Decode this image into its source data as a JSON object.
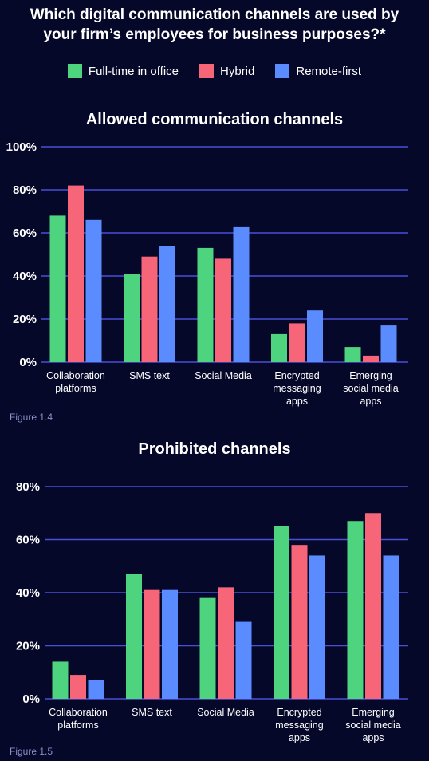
{
  "header": {
    "title": "Which digital communication channels are used by\nyour firm’s employees for business purposes?*"
  },
  "legend": [
    {
      "label": "Full-time in office",
      "color": "#4ed47f"
    },
    {
      "label": "Hybrid",
      "color": "#f66578"
    },
    {
      "label": "Remote-first",
      "color": "#5a8cff"
    }
  ],
  "colors": {
    "background": "#06082a",
    "gridline": "#4a4fd6",
    "caption": "#8a90c8"
  },
  "captions": {
    "chart1": "Figure 1.4",
    "chart2": "Figure 1.5"
  },
  "chart_data": [
    {
      "type": "bar",
      "title": "Allowed communication channels",
      "categories": [
        [
          "Collaboration",
          "platforms"
        ],
        [
          "SMS text"
        ],
        [
          "Social Media"
        ],
        [
          "Encrypted",
          "messaging",
          "apps"
        ],
        [
          "Emerging",
          "social media",
          "apps"
        ]
      ],
      "series": [
        {
          "name": "Full-time in office",
          "values": [
            68,
            41,
            53,
            13,
            7
          ]
        },
        {
          "name": "Hybrid",
          "values": [
            82,
            49,
            48,
            18,
            3
          ]
        },
        {
          "name": "Remote-first",
          "values": [
            66,
            54,
            63,
            24,
            17
          ]
        }
      ],
      "ylim": [
        0,
        100
      ],
      "yticks": [
        "0%",
        "20%",
        "40%",
        "60%",
        "80%",
        "100%"
      ],
      "grid": true
    },
    {
      "type": "bar",
      "title": "Prohibited channels",
      "categories": [
        [
          "Collaboration",
          "platforms"
        ],
        [
          "SMS text"
        ],
        [
          "Social Media"
        ],
        [
          "Encrypted",
          "messaging",
          "apps"
        ],
        [
          "Emerging",
          "social media",
          "apps"
        ]
      ],
      "series": [
        {
          "name": "Full-time in office",
          "values": [
            14,
            47,
            38,
            65,
            67
          ]
        },
        {
          "name": "Hybrid",
          "values": [
            9,
            41,
            42,
            58,
            70
          ]
        },
        {
          "name": "Remote-first",
          "values": [
            7,
            41,
            29,
            54,
            54
          ]
        }
      ],
      "ylim": [
        0,
        80
      ],
      "yticks": [
        "0%",
        "20%",
        "40%",
        "60%",
        "80%"
      ],
      "grid": true
    }
  ]
}
